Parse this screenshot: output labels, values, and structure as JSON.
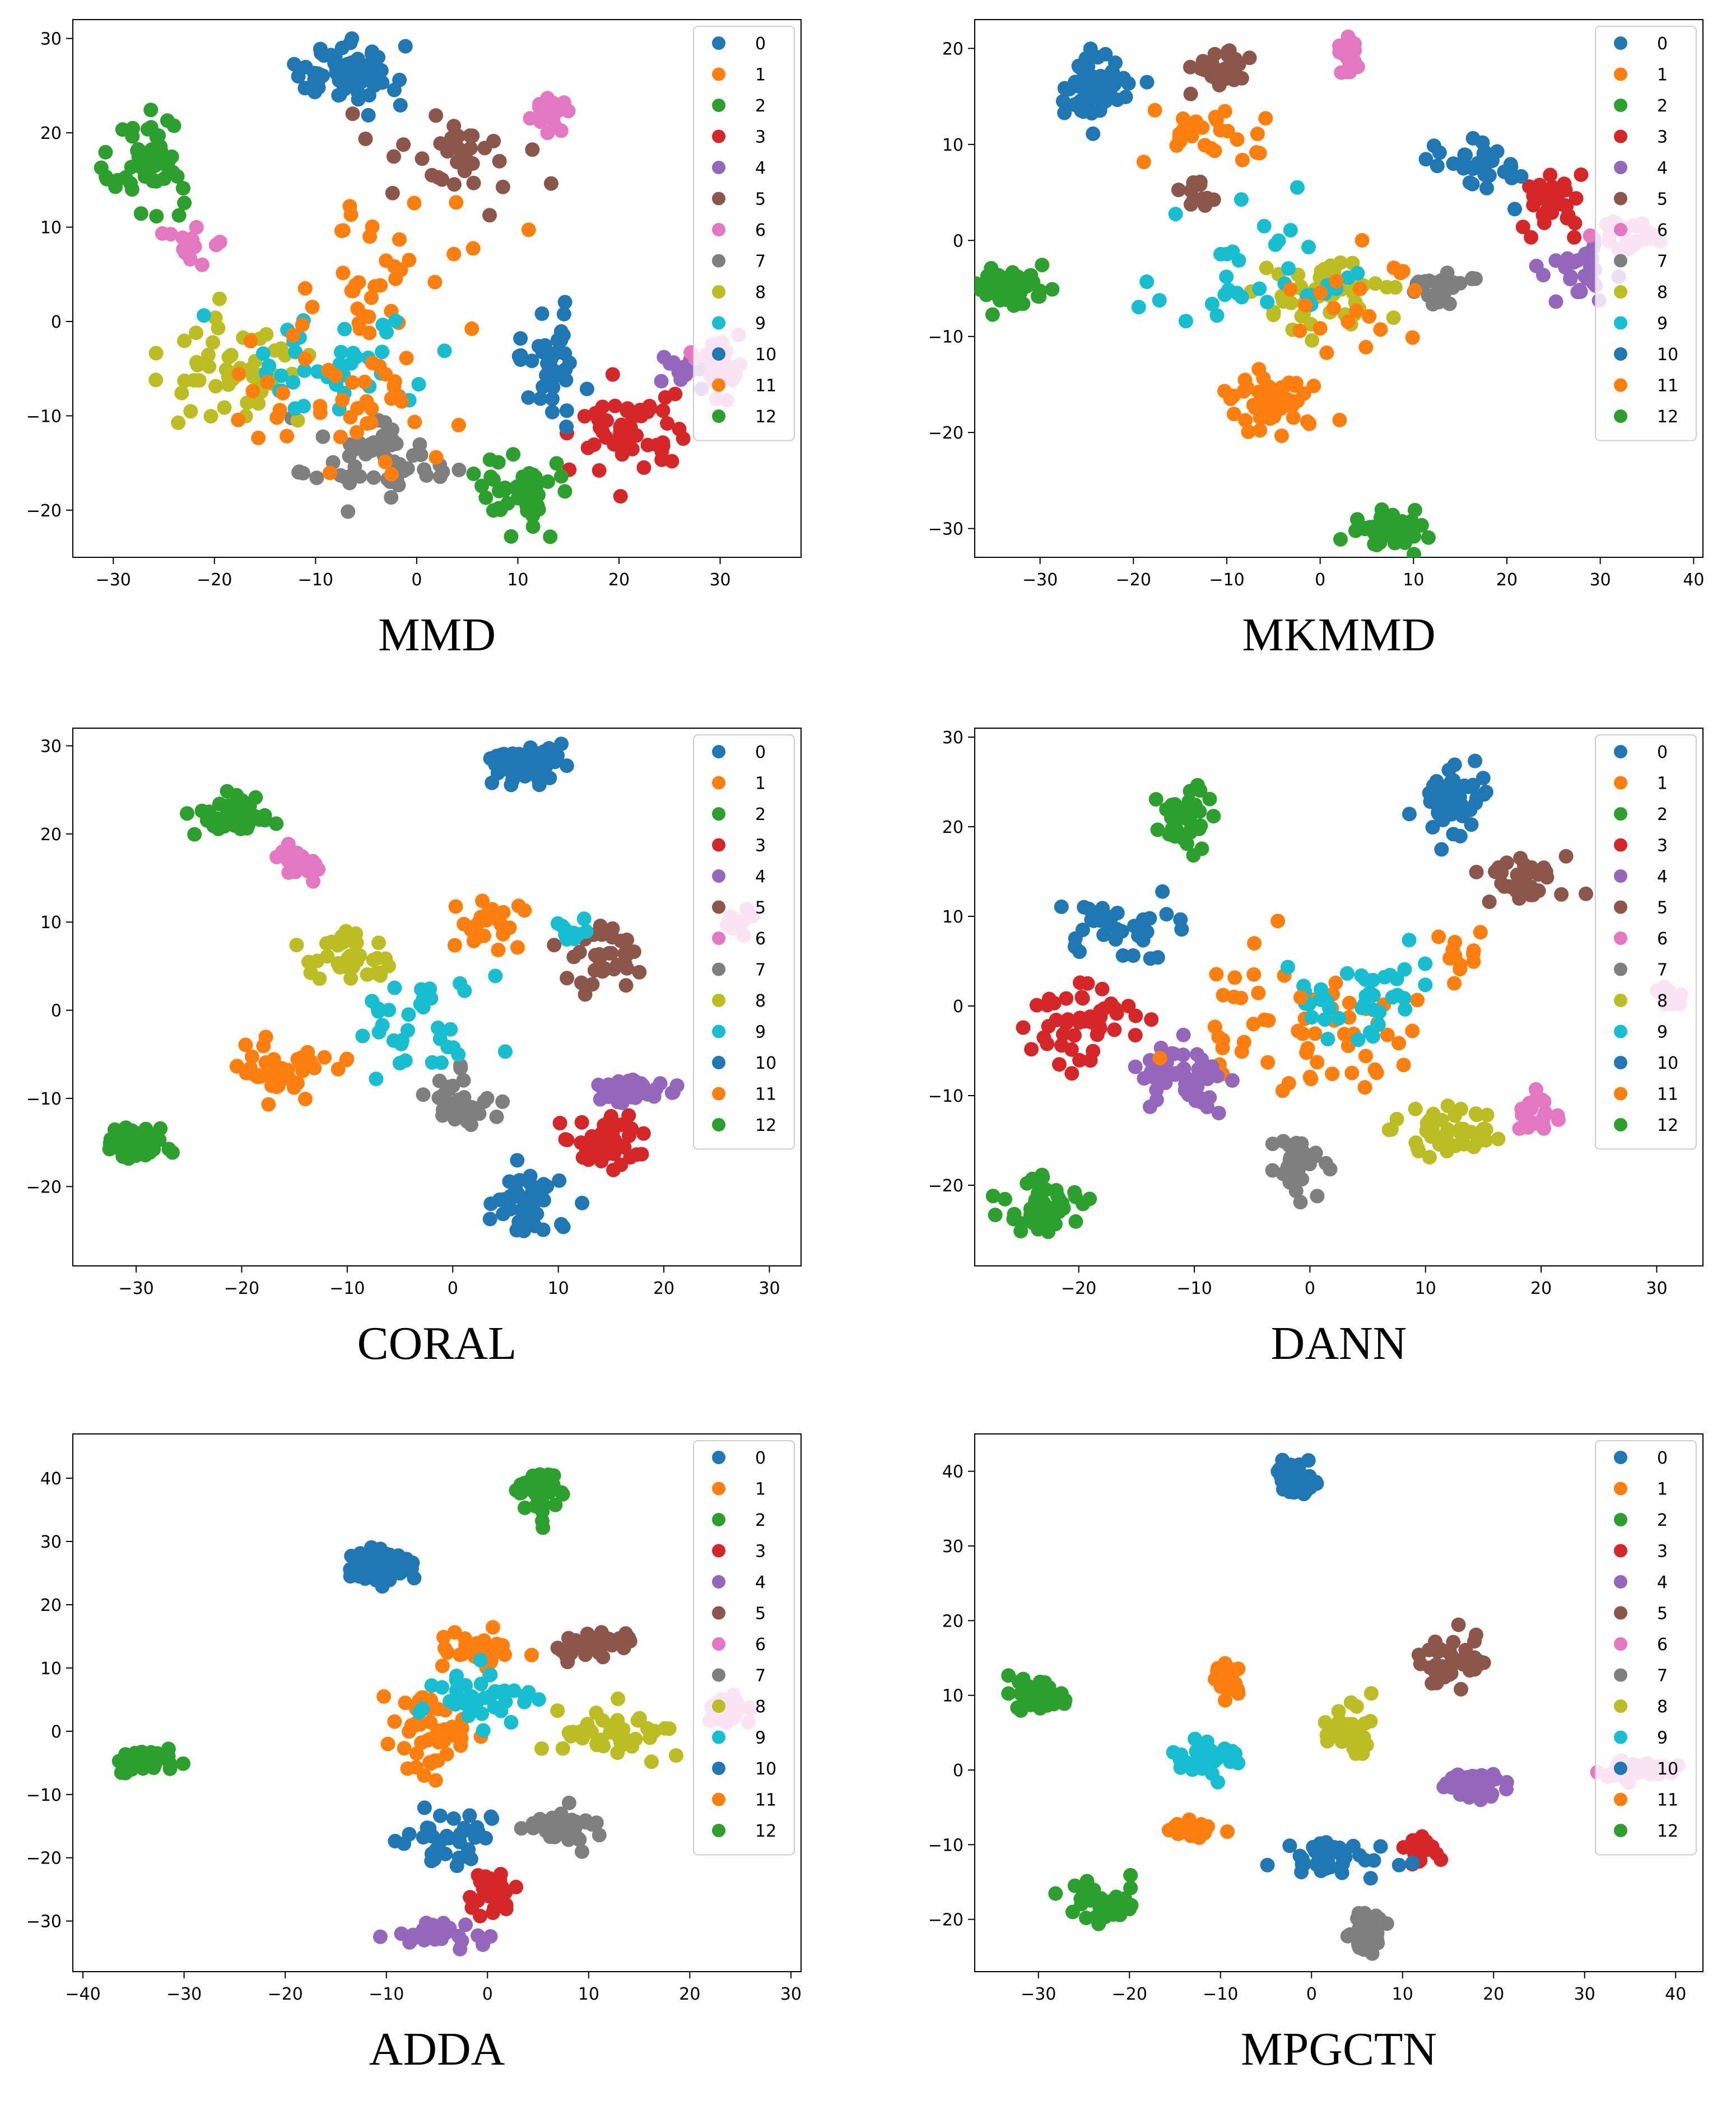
{
  "figure": {
    "layout": "3 rows x 2 columns of t-SNE scatter plots",
    "legend_position": "top-right",
    "legend_labels": [
      "0",
      "1",
      "2",
      "3",
      "4",
      "5",
      "6",
      "7",
      "8",
      "9",
      "10",
      "11",
      "12"
    ]
  },
  "colors": {
    "0": "#1f77b4",
    "1": "#ff7f0e",
    "2": "#2ca02c",
    "3": "#d62728",
    "4": "#9467bd",
    "5": "#8c564b",
    "6": "#e377c2",
    "7": "#7f7f7f",
    "8": "#bcbd22",
    "9": "#17becf",
    "10": "#1f77b4",
    "11": "#ff7f0e",
    "12": "#2ca02c"
  },
  "chart_data": [
    {
      "type": "scatter",
      "title": "MMD",
      "xlabel": "",
      "ylabel": "",
      "xlim": [
        -34,
        38
      ],
      "ylim": [
        -25,
        32
      ],
      "xticks": [
        -30,
        -20,
        -10,
        0,
        10,
        20,
        30
      ],
      "yticks": [
        -20,
        -10,
        0,
        10,
        20,
        30
      ],
      "clusters": [
        {
          "label": "0",
          "x": -7,
          "y": 26,
          "sx": 3,
          "sy": 2,
          "n": 70
        },
        {
          "label": "1",
          "x": -3,
          "y": 7,
          "sx": 7,
          "sy": 6,
          "n": 30
        },
        {
          "label": "2",
          "x": -27,
          "y": 17,
          "sx": 2.5,
          "sy": 3,
          "n": 55
        },
        {
          "label": "3",
          "x": 21,
          "y": -12,
          "sx": 3.5,
          "sy": 3,
          "n": 55
        },
        {
          "label": "4",
          "x": 26,
          "y": -5,
          "sx": 2,
          "sy": 2,
          "n": 12
        },
        {
          "label": "5",
          "x": 4,
          "y": 18,
          "sx": 4.5,
          "sy": 3,
          "n": 35
        },
        {
          "label": "6",
          "x": 13,
          "y": 22,
          "sx": 1.5,
          "sy": 1.2,
          "n": 22
        },
        {
          "label": "6",
          "x": -22,
          "y": 8,
          "sx": 1.8,
          "sy": 1.5,
          "n": 15
        },
        {
          "label": "7",
          "x": -3,
          "y": -15,
          "sx": 5,
          "sy": 3,
          "n": 55
        },
        {
          "label": "8",
          "x": -18,
          "y": -5,
          "sx": 4,
          "sy": 4,
          "n": 55
        },
        {
          "label": "9",
          "x": -8,
          "y": -4,
          "sx": 7,
          "sy": 4,
          "n": 40
        },
        {
          "label": "10",
          "x": 13,
          "y": -4,
          "sx": 1.8,
          "sy": 4,
          "n": 40
        },
        {
          "label": "11",
          "x": -5,
          "y": -7,
          "sx": 8,
          "sy": 6,
          "n": 50
        },
        {
          "label": "12",
          "x": 10,
          "y": -18,
          "sx": 2.5,
          "sy": 2.5,
          "n": 45
        },
        {
          "label": "6",
          "x": 30,
          "y": -5,
          "sx": 2,
          "sy": 2,
          "n": 25
        }
      ]
    },
    {
      "type": "scatter",
      "title": "MKMMD",
      "xlabel": "",
      "ylabel": "",
      "xlim": [
        -37,
        41
      ],
      "ylim": [
        -33,
        23
      ],
      "xticks": [
        -30,
        -20,
        -10,
        0,
        10,
        20,
        30,
        40
      ],
      "yticks": [
        -30,
        -20,
        -10,
        0,
        10,
        20
      ],
      "clusters": [
        {
          "label": "0",
          "x": -24,
          "y": 16,
          "sx": 2.5,
          "sy": 2.2,
          "n": 65
        },
        {
          "label": "1",
          "x": -11,
          "y": 11,
          "sx": 4,
          "sy": 1.8,
          "n": 30
        },
        {
          "label": "2",
          "x": -33,
          "y": -5,
          "sx": 2.5,
          "sy": 1.7,
          "n": 55
        },
        {
          "label": "3",
          "x": 25,
          "y": 4,
          "sx": 2,
          "sy": 2,
          "n": 35
        },
        {
          "label": "4",
          "x": 28,
          "y": -3,
          "sx": 2.5,
          "sy": 1.8,
          "n": 30
        },
        {
          "label": "5",
          "x": -11,
          "y": 18,
          "sx": 2.2,
          "sy": 1.5,
          "n": 30
        },
        {
          "label": "5",
          "x": -13,
          "y": 5,
          "sx": 1.5,
          "sy": 1.2,
          "n": 12
        },
        {
          "label": "6",
          "x": 3,
          "y": 19,
          "sx": 0.8,
          "sy": 1.3,
          "n": 20
        },
        {
          "label": "6",
          "x": 33,
          "y": 0,
          "sx": 2,
          "sy": 1.5,
          "n": 25
        },
        {
          "label": "7",
          "x": 13,
          "y": -5,
          "sx": 2.5,
          "sy": 1.3,
          "n": 25
        },
        {
          "label": "8",
          "x": 1,
          "y": -5,
          "sx": 4,
          "sy": 3.5,
          "n": 55
        },
        {
          "label": "9",
          "x": -8,
          "y": -3,
          "sx": 7,
          "sy": 5,
          "n": 35
        },
        {
          "label": "10",
          "x": 17,
          "y": 8,
          "sx": 3.5,
          "sy": 2,
          "n": 35
        },
        {
          "label": "11",
          "x": -5,
          "y": -17,
          "sx": 3,
          "sy": 2,
          "n": 50
        },
        {
          "label": "11",
          "x": 3,
          "y": -6,
          "sx": 5,
          "sy": 4,
          "n": 20
        },
        {
          "label": "12",
          "x": 7,
          "y": -30,
          "sx": 2.5,
          "sy": 1.2,
          "n": 50
        }
      ]
    },
    {
      "type": "scatter",
      "title": "CORAL",
      "xlabel": "",
      "ylabel": "",
      "xlim": [
        -36,
        33
      ],
      "ylim": [
        -29,
        32
      ],
      "xticks": [
        -30,
        -20,
        -10,
        0,
        10,
        20,
        30
      ],
      "yticks": [
        -20,
        -10,
        0,
        10,
        20,
        30
      ],
      "clusters": [
        {
          "label": "0",
          "x": 7,
          "y": 28,
          "sx": 2.2,
          "sy": 1.6,
          "n": 60
        },
        {
          "label": "0",
          "x": 7,
          "y": -22,
          "sx": 2.5,
          "sy": 2.5,
          "n": 40
        },
        {
          "label": "1",
          "x": -16,
          "y": -7,
          "sx": 4,
          "sy": 2,
          "n": 45
        },
        {
          "label": "1",
          "x": 3,
          "y": 10,
          "sx": 3,
          "sy": 2.5,
          "n": 25
        },
        {
          "label": "2",
          "x": -21,
          "y": 22,
          "sx": 2.5,
          "sy": 1.5,
          "n": 45
        },
        {
          "label": "2",
          "x": -30,
          "y": -15,
          "sx": 2,
          "sy": 1.3,
          "n": 45
        },
        {
          "label": "3",
          "x": 15,
          "y": -15,
          "sx": 3,
          "sy": 2.5,
          "n": 45
        },
        {
          "label": "4",
          "x": 17,
          "y": -9,
          "sx": 2.5,
          "sy": 1,
          "n": 40
        },
        {
          "label": "5",
          "x": 14,
          "y": 6,
          "sx": 2.5,
          "sy": 2,
          "n": 35
        },
        {
          "label": "6",
          "x": -15,
          "y": 16,
          "sx": 1.5,
          "sy": 1.5,
          "n": 18
        },
        {
          "label": "6",
          "x": 27,
          "y": 10,
          "sx": 1,
          "sy": 1,
          "n": 12
        },
        {
          "label": "7",
          "x": 1,
          "y": -10,
          "sx": 2.5,
          "sy": 2,
          "n": 35
        },
        {
          "label": "8",
          "x": -10,
          "y": 6,
          "sx": 2.5,
          "sy": 2,
          "n": 40
        },
        {
          "label": "9",
          "x": -3,
          "y": -1,
          "sx": 5,
          "sy": 4,
          "n": 35
        },
        {
          "label": "9",
          "x": 11,
          "y": 9,
          "sx": 1.5,
          "sy": 1,
          "n": 10
        }
      ]
    },
    {
      "type": "scatter",
      "title": "DANN",
      "xlabel": "",
      "ylabel": "",
      "xlim": [
        -29,
        34
      ],
      "ylim": [
        -29,
        31
      ],
      "xticks": [
        -20,
        -10,
        0,
        10,
        20,
        30
      ],
      "yticks": [
        -20,
        -10,
        0,
        10,
        20,
        30
      ],
      "clusters": [
        {
          "label": "0",
          "x": 12,
          "y": 23,
          "sx": 2,
          "sy": 2.5,
          "n": 55
        },
        {
          "label": "1",
          "x": 2,
          "y": -4,
          "sx": 5,
          "sy": 4,
          "n": 45
        },
        {
          "label": "1",
          "x": 13,
          "y": 6,
          "sx": 1.5,
          "sy": 1.5,
          "n": 12
        },
        {
          "label": "2",
          "x": -11,
          "y": 21,
          "sx": 1.8,
          "sy": 2.2,
          "n": 40
        },
        {
          "label": "2",
          "x": -23,
          "y": -23,
          "sx": 2,
          "sy": 1.8,
          "n": 50
        },
        {
          "label": "3",
          "x": -20,
          "y": -2,
          "sx": 3,
          "sy": 3,
          "n": 50
        },
        {
          "label": "4",
          "x": -11,
          "y": -8,
          "sx": 3,
          "sy": 2.5,
          "n": 45
        },
        {
          "label": "5",
          "x": 19,
          "y": 14,
          "sx": 3,
          "sy": 1.5,
          "n": 35
        },
        {
          "label": "6",
          "x": 20,
          "y": -12,
          "sx": 2,
          "sy": 2,
          "n": 22
        },
        {
          "label": "6",
          "x": 31,
          "y": 1,
          "sx": 1.2,
          "sy": 0.8,
          "n": 12
        },
        {
          "label": "7",
          "x": -1,
          "y": -18,
          "sx": 1.5,
          "sy": 2,
          "n": 30
        },
        {
          "label": "8",
          "x": 12,
          "y": -14,
          "sx": 3.5,
          "sy": 2,
          "n": 45
        },
        {
          "label": "9",
          "x": 4,
          "y": 1,
          "sx": 4,
          "sy": 3,
          "n": 40
        },
        {
          "label": "10",
          "x": -16,
          "y": 9,
          "sx": 3,
          "sy": 2.5,
          "n": 35
        },
        {
          "label": "11",
          "x": -5,
          "y": 1,
          "sx": 4,
          "sy": 4,
          "n": 15
        }
      ]
    },
    {
      "type": "scatter",
      "title": "ADDA",
      "xlabel": "",
      "ylabel": "",
      "xlim": [
        -41,
        31
      ],
      "ylim": [
        -38,
        47
      ],
      "xticks": [
        -40,
        -30,
        -20,
        -10,
        0,
        10,
        20,
        30
      ],
      "yticks": [
        -30,
        -20,
        -10,
        0,
        10,
        20,
        30,
        40
      ],
      "clusters": [
        {
          "label": "0",
          "x": -11,
          "y": 26,
          "sx": 2,
          "sy": 2,
          "n": 55
        },
        {
          "label": "0",
          "x": -4,
          "y": -17,
          "sx": 3,
          "sy": 3,
          "n": 35
        },
        {
          "label": "1",
          "x": -6,
          "y": 0,
          "sx": 3,
          "sy": 4,
          "n": 45
        },
        {
          "label": "1",
          "x": -1,
          "y": 13,
          "sx": 3,
          "sy": 2,
          "n": 25
        },
        {
          "label": "2",
          "x": 5,
          "y": 38,
          "sx": 1.8,
          "sy": 3,
          "n": 40
        },
        {
          "label": "3",
          "x": 0,
          "y": -25,
          "sx": 2,
          "sy": 2.5,
          "n": 30
        },
        {
          "label": "4",
          "x": -5,
          "y": -32,
          "sx": 2.5,
          "sy": 1.5,
          "n": 35
        },
        {
          "label": "5",
          "x": 11,
          "y": 14,
          "sx": 2.5,
          "sy": 1.5,
          "n": 35
        },
        {
          "label": "6",
          "x": 24,
          "y": 3,
          "sx": 2,
          "sy": 1.5,
          "n": 25
        },
        {
          "label": "7",
          "x": 8,
          "y": -15,
          "sx": 2.5,
          "sy": 2,
          "n": 35
        },
        {
          "label": "8",
          "x": 12,
          "y": 0,
          "sx": 4,
          "sy": 2.5,
          "n": 45
        },
        {
          "label": "9",
          "x": 0,
          "y": 5,
          "sx": 4,
          "sy": 3,
          "n": 40
        },
        {
          "label": "12",
          "x": -34,
          "y": -5,
          "sx": 2,
          "sy": 1.5,
          "n": 45
        }
      ]
    },
    {
      "type": "scatter",
      "title": "MPGCTN",
      "xlabel": "",
      "ylabel": "",
      "xlim": [
        -37,
        43
      ],
      "ylim": [
        -27,
        45
      ],
      "xticks": [
        -30,
        -20,
        -10,
        0,
        10,
        20,
        30,
        40
      ],
      "yticks": [
        -20,
        -10,
        0,
        10,
        20,
        30,
        40
      ],
      "clusters": [
        {
          "label": "0",
          "x": -2,
          "y": 39,
          "sx": 1.5,
          "sy": 1.5,
          "n": 55
        },
        {
          "label": "1",
          "x": -9,
          "y": 12,
          "sx": 1.2,
          "sy": 1.8,
          "n": 20
        },
        {
          "label": "2",
          "x": -30,
          "y": 10,
          "sx": 2,
          "sy": 1.5,
          "n": 40
        },
        {
          "label": "3",
          "x": 12,
          "y": -11,
          "sx": 1.5,
          "sy": 1.5,
          "n": 25
        },
        {
          "label": "4",
          "x": 18,
          "y": -2,
          "sx": 2.5,
          "sy": 1.2,
          "n": 40
        },
        {
          "label": "5",
          "x": 15,
          "y": 14,
          "sx": 2.5,
          "sy": 2.5,
          "n": 40
        },
        {
          "label": "6",
          "x": 36,
          "y": 0,
          "sx": 2.5,
          "sy": 0.8,
          "n": 30
        },
        {
          "label": "7",
          "x": 6,
          "y": -22,
          "sx": 1.5,
          "sy": 2,
          "n": 30
        },
        {
          "label": "8",
          "x": 4,
          "y": 5,
          "sx": 2,
          "sy": 2.5,
          "n": 35
        },
        {
          "label": "9",
          "x": -11,
          "y": 2,
          "sx": 2.5,
          "sy": 1.5,
          "n": 40
        },
        {
          "label": "10",
          "x": 2,
          "y": -12,
          "sx": 4,
          "sy": 1.5,
          "n": 45
        },
        {
          "label": "11",
          "x": -13,
          "y": -8,
          "sx": 2,
          "sy": 1,
          "n": 25
        },
        {
          "label": "12",
          "x": -23,
          "y": -18,
          "sx": 2.5,
          "sy": 2,
          "n": 40
        }
      ]
    }
  ]
}
